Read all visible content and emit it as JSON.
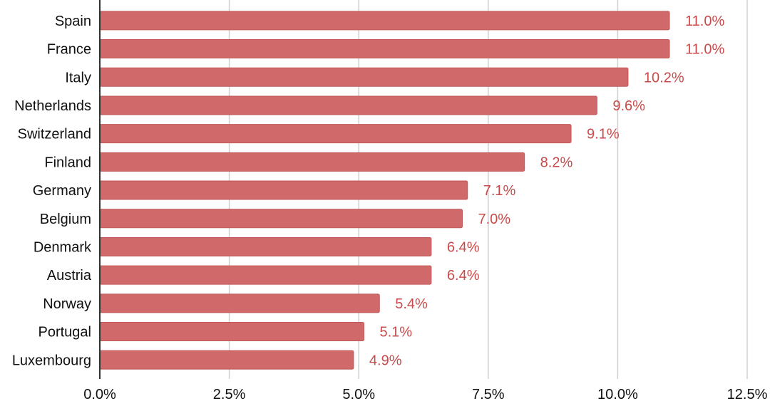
{
  "chart_data": {
    "type": "bar",
    "orientation": "horizontal",
    "title": "",
    "xlabel": "",
    "ylabel": "",
    "xlim": [
      0,
      12.5
    ],
    "grid": "vertical",
    "legend": "none",
    "categories": [
      "Spain",
      "France",
      "Italy",
      "Netherlands",
      "Switzerland",
      "Finland",
      "Germany",
      "Belgium",
      "Denmark",
      "Austria",
      "Norway",
      "Portugal",
      "Luxembourg"
    ],
    "values": [
      11.0,
      11.0,
      10.2,
      9.6,
      9.1,
      8.2,
      7.1,
      7.0,
      6.4,
      6.4,
      5.4,
      5.1,
      4.9
    ],
    "data_labels": [
      "11.0%",
      "11.0%",
      "10.2%",
      "9.6%",
      "9.1%",
      "8.2%",
      "7.1%",
      "7.0%",
      "6.4%",
      "6.4%",
      "5.4%",
      "5.1%",
      "4.9%"
    ],
    "ticks": [
      0,
      2.5,
      5.0,
      7.5,
      10.0,
      12.5
    ],
    "tick_labels": [
      "0.0%",
      "2.5%",
      "5.0%",
      "7.5%",
      "10.0%",
      "12.5%"
    ],
    "colors": {
      "bar": "#d06a6a",
      "bar_edge": "#c15959",
      "data_label": "#c94a4a",
      "grid": "#cfcfcf",
      "axis": "#333333"
    }
  }
}
